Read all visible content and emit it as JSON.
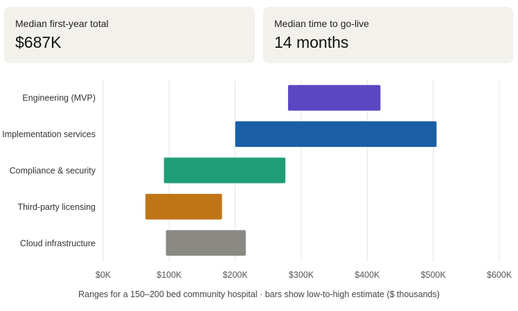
{
  "stats": {
    "first_year": {
      "label": "Median first-year total",
      "value": "$687K"
    },
    "go_live": {
      "label": "Median time to go-live",
      "value": "14 months"
    }
  },
  "chart_data": {
    "type": "bar",
    "orientation": "horizontal-range",
    "categories": [
      "Engineering (MVP)",
      "Implementation services",
      "Compliance & security",
      "Third-party licensing",
      "Cloud infrastructure"
    ],
    "series": [
      {
        "low": [
          280,
          200,
          92,
          64,
          95
        ],
        "high": [
          420,
          505,
          276,
          180,
          216
        ]
      }
    ],
    "colors": [
      "#5b47c2",
      "#1a5fa6",
      "#1f9e76",
      "#bf7516",
      "#8a8983"
    ],
    "xlim": [
      0,
      600
    ],
    "xticks": [
      0,
      100,
      200,
      300,
      400,
      500,
      600
    ],
    "xtick_labels": [
      "$0K",
      "$100K",
      "$200K",
      "$300K",
      "$400K",
      "$500K",
      "$600K"
    ],
    "grid": true,
    "caption": "Ranges for a 150–200 bed community hospital · bars show low-to-high estimate ($ thousands)"
  }
}
